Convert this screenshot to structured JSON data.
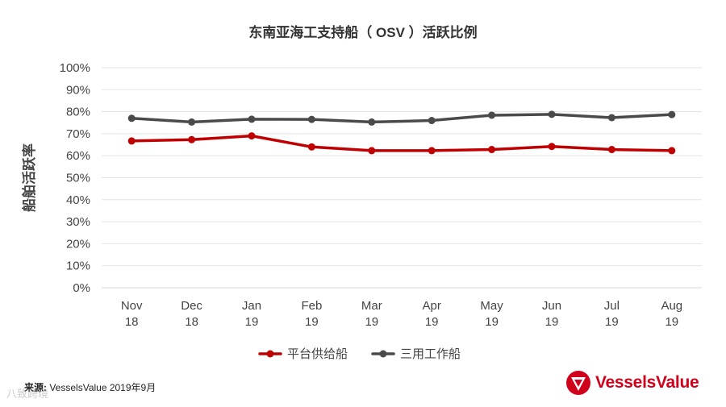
{
  "chart_data": {
    "type": "line",
    "title": "东南亚海工支持船（ OSV ）活跃比例",
    "ylabel": "船舶活跃率",
    "xlabel": "",
    "categories": [
      [
        "Nov",
        "18"
      ],
      [
        "Dec",
        "18"
      ],
      [
        "Jan",
        "19"
      ],
      [
        "Feb",
        "19"
      ],
      [
        "Mar",
        "19"
      ],
      [
        "Apr",
        "19"
      ],
      [
        "May",
        "19"
      ],
      [
        "Jun",
        "19"
      ],
      [
        "Jul",
        "19"
      ],
      [
        "Aug",
        "19"
      ]
    ],
    "yticks": [
      "0%",
      "10%",
      "20%",
      "30%",
      "40%",
      "50%",
      "60%",
      "70%",
      "80%",
      "90%",
      "100%"
    ],
    "ylim": [
      0,
      100
    ],
    "grid": true,
    "legend_position": "bottom",
    "series": [
      {
        "name": "平台供给船",
        "color": "#c00000",
        "values": [
          66.7,
          67.3,
          69.0,
          64.0,
          62.3,
          62.3,
          62.8,
          64.2,
          62.8,
          62.3
        ]
      },
      {
        "name": "三用工作船",
        "color": "#4a4a4a",
        "values": [
          77.0,
          75.3,
          76.6,
          76.5,
          75.3,
          76.0,
          78.4,
          78.8,
          77.3,
          78.7
        ]
      }
    ]
  },
  "source": {
    "label": "来源:",
    "text": "VesselsValue 2019年9月"
  },
  "logo": {
    "text": "VesselsValue",
    "color": "#d0021b"
  },
  "watermark": {
    "text": "八致跨境"
  }
}
